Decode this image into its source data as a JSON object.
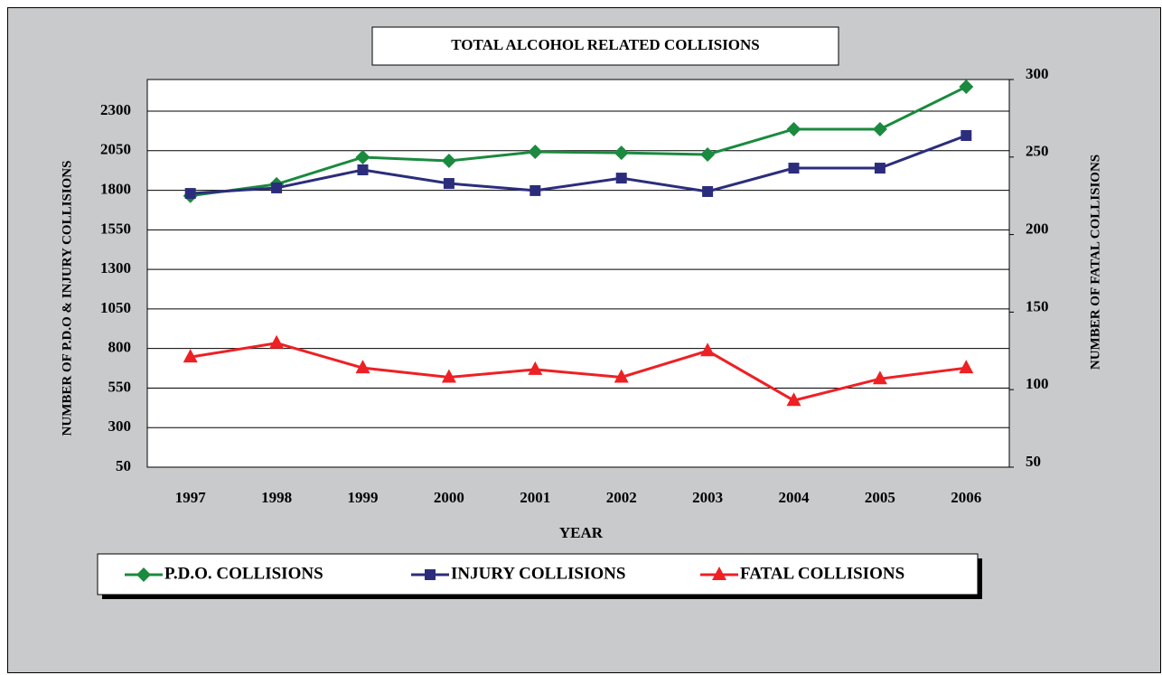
{
  "chart_data": {
    "type": "line",
    "title": "TOTAL ALCOHOL RELATED COLLISIONS",
    "x_label": "YEAR",
    "y_label": "NUMBER OF P.D.O & INJURY COLLISIONS",
    "y2_label": "NUMBER OF FATAL COLLISIONS",
    "categories": [
      "1997",
      "1998",
      "1999",
      "2000",
      "2001",
      "2002",
      "2003",
      "2004",
      "2005",
      "2006"
    ],
    "series": [
      {
        "name": "P.D.O. COLLISIONS",
        "color": "#1a8a3e",
        "marker": "diamond",
        "values": [
          1765,
          1838,
          2009,
          1986,
          2043,
          2037,
          2026,
          2186,
          2186,
          2454
        ]
      },
      {
        "name": "INJURY COLLISIONS",
        "color": "#2b2d7c",
        "marker": "square",
        "values": [
          1780,
          1815,
          1929,
          1843,
          1798,
          1877,
          1792,
          1940,
          1940,
          2146
        ]
      },
      {
        "name": "FATAL COLLISIONS",
        "color": "#ee2024",
        "marker": "triangle",
        "axis": "y2",
        "values": [
          121,
          130,
          114,
          108,
          113,
          108,
          125,
          93,
          107,
          114
        ]
      }
    ],
    "ylim": [
      50,
      2500
    ],
    "yticks": [
      50,
      300,
      550,
      800,
      1050,
      1300,
      1550,
      1800,
      2050,
      2300
    ],
    "y2lim": [
      50,
      300
    ],
    "y2ticks": [
      50,
      100,
      150,
      200,
      250,
      300
    ],
    "grid": true,
    "legend": "bottom"
  }
}
